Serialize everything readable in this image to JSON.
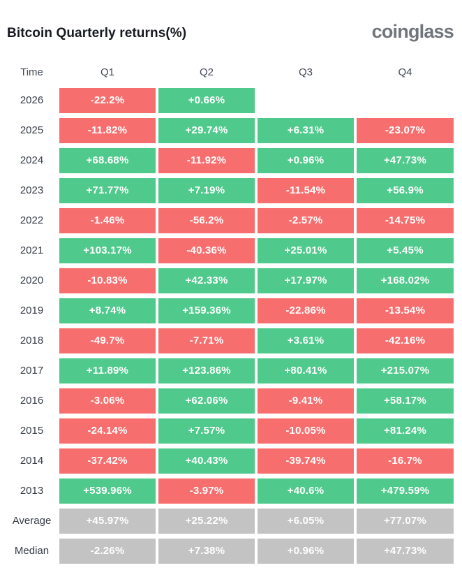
{
  "header": {
    "title": "Bitcoin Quarterly returns(%)",
    "brand": "coinglass"
  },
  "colors": {
    "positive": "#4fc98c",
    "negative": "#f76e6e",
    "neutral": "#c3c3c3",
    "value_text": "#ffffff",
    "label_text": "#363c46",
    "title_text": "#16191f",
    "brand_text": "#70757c"
  },
  "chart_data": {
    "type": "heatmap",
    "title": "Bitcoin Quarterly returns(%)",
    "columns": [
      "Time",
      "Q1",
      "Q2",
      "Q3",
      "Q4"
    ],
    "legend": "green = positive return, red = negative return, gray = summary rows",
    "rows": [
      {
        "label": "2026",
        "kind": "year",
        "values": [
          "-22.2%",
          "+0.66%",
          null,
          null
        ]
      },
      {
        "label": "2025",
        "kind": "year",
        "values": [
          "-11.82%",
          "+29.74%",
          "+6.31%",
          "-23.07%"
        ]
      },
      {
        "label": "2024",
        "kind": "year",
        "values": [
          "+68.68%",
          "-11.92%",
          "+0.96%",
          "+47.73%"
        ]
      },
      {
        "label": "2023",
        "kind": "year",
        "values": [
          "+71.77%",
          "+7.19%",
          "-11.54%",
          "+56.9%"
        ]
      },
      {
        "label": "2022",
        "kind": "year",
        "values": [
          "-1.46%",
          "-56.2%",
          "-2.57%",
          "-14.75%"
        ]
      },
      {
        "label": "2021",
        "kind": "year",
        "values": [
          "+103.17%",
          "-40.36%",
          "+25.01%",
          "+5.45%"
        ]
      },
      {
        "label": "2020",
        "kind": "year",
        "values": [
          "-10.83%",
          "+42.33%",
          "+17.97%",
          "+168.02%"
        ]
      },
      {
        "label": "2019",
        "kind": "year",
        "values": [
          "+8.74%",
          "+159.36%",
          "-22.86%",
          "-13.54%"
        ]
      },
      {
        "label": "2018",
        "kind": "year",
        "values": [
          "-49.7%",
          "-7.71%",
          "+3.61%",
          "-42.16%"
        ]
      },
      {
        "label": "2017",
        "kind": "year",
        "values": [
          "+11.89%",
          "+123.86%",
          "+80.41%",
          "+215.07%"
        ]
      },
      {
        "label": "2016",
        "kind": "year",
        "values": [
          "-3.06%",
          "+62.06%",
          "-9.41%",
          "+58.17%"
        ]
      },
      {
        "label": "2015",
        "kind": "year",
        "values": [
          "-24.14%",
          "+7.57%",
          "-10.05%",
          "+81.24%"
        ]
      },
      {
        "label": "2014",
        "kind": "year",
        "values": [
          "-37.42%",
          "+40.43%",
          "-39.74%",
          "-16.7%"
        ]
      },
      {
        "label": "2013",
        "kind": "year",
        "values": [
          "+539.96%",
          "-3.97%",
          "+40.6%",
          "+479.59%"
        ]
      },
      {
        "label": "Average",
        "kind": "summary",
        "values": [
          "+45.97%",
          "+25.22%",
          "+6.05%",
          "+77.07%"
        ]
      },
      {
        "label": "Median",
        "kind": "summary",
        "values": [
          "-2.26%",
          "+7.38%",
          "+0.96%",
          "+47.73%"
        ]
      }
    ]
  }
}
